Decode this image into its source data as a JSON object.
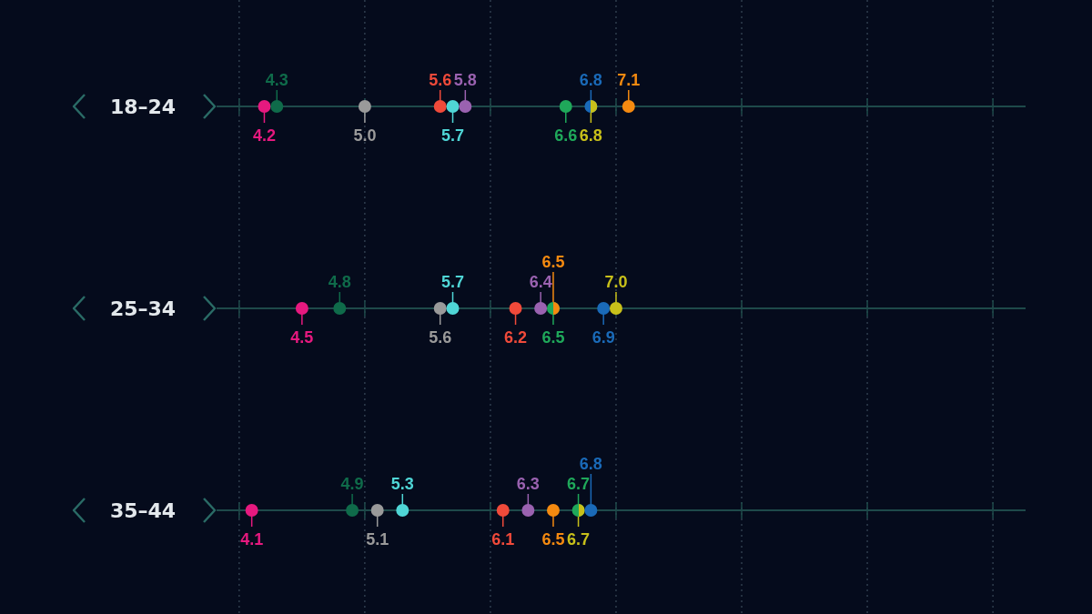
{
  "chart_data": {
    "type": "scatter",
    "orientation": "horizontal",
    "categories": [
      "18–24",
      "25–34",
      "35–44"
    ],
    "xlim": [
      3.82,
      10.26
    ],
    "xticks": [
      {
        "value": 4,
        "label": null
      },
      {
        "value": 5,
        "label": null
      },
      {
        "value": 6,
        "label": null
      },
      {
        "value": 7,
        "label": null
      },
      {
        "value": 8,
        "label": null
      },
      {
        "value": 9,
        "label": null
      },
      {
        "value": 10,
        "label": null
      }
    ],
    "tick_labels": "y",
    "grid": true,
    "marker": "circle",
    "series": [
      {
        "color": "#e6197f",
        "values": [
          4.2,
          4.5,
          4.1
        ],
        "value_labels": [
          "4.2",
          "4.5",
          "4.1"
        ]
      },
      {
        "color": "#0f6b4a",
        "values": [
          4.3,
          4.8,
          4.9
        ],
        "value_labels": [
          "4.3",
          "4.8",
          "4.9"
        ]
      },
      {
        "color": "#9a9a9a",
        "values": [
          5.0,
          5.6,
          5.1
        ],
        "value_labels": [
          "5.0",
          "5.6",
          "5.1"
        ]
      },
      {
        "color": "#f04a3a",
        "values": [
          5.6,
          6.2,
          6.1
        ],
        "value_labels": [
          "5.6",
          "6.2",
          "6.1"
        ]
      },
      {
        "color": "#4fd6d6",
        "values": [
          5.7,
          5.7,
          5.3
        ],
        "value_labels": [
          "5.7",
          "5.7",
          "5.3"
        ]
      },
      {
        "color": "#9a62b0",
        "values": [
          5.8,
          6.4,
          6.3
        ],
        "value_labels": [
          "5.8",
          "6.4",
          "6.3"
        ]
      },
      {
        "color": "#1fa85a",
        "values": [
          6.6,
          6.5,
          6.7
        ],
        "value_labels": [
          "6.6",
          "6.5",
          "6.7"
        ]
      },
      {
        "color": "#1a6ab8",
        "values": [
          6.8,
          6.9,
          6.8
        ],
        "value_labels": [
          "6.8",
          "6.9",
          "6.8"
        ]
      },
      {
        "color": "#c8c01a",
        "values": [
          6.8,
          7.0,
          6.7
        ],
        "value_labels": [
          "6.8",
          "7.0",
          "6.7"
        ]
      },
      {
        "color": "#f58a10",
        "values": [
          7.1,
          6.5,
          6.5
        ],
        "value_labels": [
          "7.1",
          "6.5",
          "6.5"
        ]
      }
    ]
  }
}
